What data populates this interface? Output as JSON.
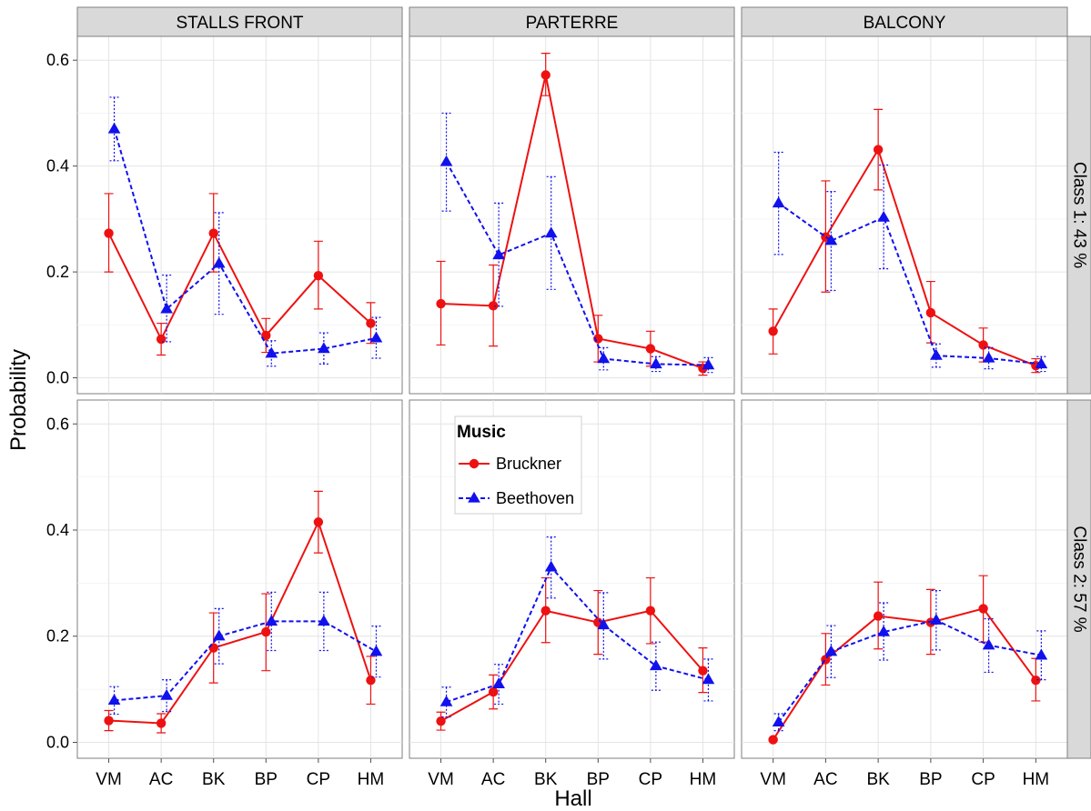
{
  "chart_data": {
    "type": "line",
    "facets": {
      "columns": [
        "STALLS FRONT",
        "PARTERRE",
        "BALCONY"
      ],
      "rows": [
        "Class 1: 43 %",
        "Class 2: 57 %"
      ]
    },
    "categories": [
      "VM",
      "AC",
      "BK",
      "BP",
      "CP",
      "HM"
    ],
    "xlabel": "Hall",
    "ylabel": "Probability",
    "ylim": [
      -0.03,
      0.645
    ],
    "yticks": [
      0.0,
      0.2,
      0.4,
      0.6
    ],
    "ytick_labels": [
      "0.0",
      "0.2",
      "0.4",
      "0.6"
    ],
    "grid": true,
    "legend": {
      "title": "Music",
      "placement": "inside-center",
      "entries": [
        "Bruckner",
        "Beethoven"
      ]
    },
    "series": [
      {
        "name": "Bruckner",
        "color": "#ee1111",
        "marker": "circle",
        "line": "solid",
        "panels": [
          [
            {
              "values": [
                0.273,
                0.073,
                0.273,
                0.08,
                0.193,
                0.103
              ],
              "lower": [
                0.2,
                0.043,
                0.2,
                0.048,
                0.13,
                0.065
              ],
              "upper": [
                0.348,
                0.103,
                0.348,
                0.112,
                0.258,
                0.142
              ]
            },
            {
              "values": [
                0.14,
                0.136,
                0.572,
                0.074,
                0.055,
                0.018
              ],
              "lower": [
                0.062,
                0.06,
                0.533,
                0.03,
                0.022,
                0.005
              ],
              "upper": [
                0.22,
                0.213,
                0.613,
                0.118,
                0.088,
                0.03
              ]
            },
            {
              "values": [
                0.088,
                0.266,
                0.431,
                0.123,
                0.062,
                0.023
              ],
              "lower": [
                0.045,
                0.162,
                0.355,
                0.066,
                0.03,
                0.01
              ],
              "upper": [
                0.13,
                0.372,
                0.507,
                0.182,
                0.094,
                0.036
              ]
            }
          ],
          [
            {
              "values": [
                0.041,
                0.036,
                0.178,
                0.208,
                0.415,
                0.117
              ],
              "lower": [
                0.022,
                0.018,
                0.112,
                0.135,
                0.357,
                0.072
              ],
              "upper": [
                0.06,
                0.054,
                0.244,
                0.28,
                0.473,
                0.162
              ]
            },
            {
              "values": [
                0.04,
                0.095,
                0.248,
                0.226,
                0.248,
                0.135
              ],
              "lower": [
                0.023,
                0.063,
                0.188,
                0.166,
                0.186,
                0.094
              ],
              "upper": [
                0.057,
                0.127,
                0.31,
                0.286,
                0.31,
                0.178
              ]
            },
            {
              "values": [
                0.005,
                0.156,
                0.238,
                0.226,
                0.252,
                0.117
              ],
              "lower": [
                0.003,
                0.108,
                0.176,
                0.166,
                0.189,
                0.078
              ],
              "upper": [
                0.007,
                0.205,
                0.302,
                0.288,
                0.314,
                0.158
              ]
            }
          ]
        ]
      },
      {
        "name": "Beethoven",
        "color": "#1111ee",
        "marker": "triangle",
        "line": "dashed",
        "panels": [
          [
            {
              "values": [
                0.47,
                0.13,
                0.216,
                0.046,
                0.055,
                0.075
              ],
              "lower": [
                0.41,
                0.068,
                0.12,
                0.022,
                0.026,
                0.037
              ],
              "upper": [
                0.53,
                0.194,
                0.312,
                0.07,
                0.085,
                0.114
              ]
            },
            {
              "values": [
                0.408,
                0.232,
                0.273,
                0.036,
                0.026,
                0.024
              ],
              "lower": [
                0.315,
                0.135,
                0.167,
                0.015,
                0.012,
                0.01
              ],
              "upper": [
                0.5,
                0.33,
                0.38,
                0.057,
                0.04,
                0.038
              ]
            },
            {
              "values": [
                0.33,
                0.259,
                0.303,
                0.042,
                0.037,
                0.026
              ],
              "lower": [
                0.233,
                0.165,
                0.206,
                0.02,
                0.017,
                0.012
              ],
              "upper": [
                0.426,
                0.352,
                0.402,
                0.064,
                0.057,
                0.04
              ]
            }
          ],
          [
            {
              "values": [
                0.079,
                0.088,
                0.2,
                0.228,
                0.228,
                0.171
              ],
              "lower": [
                0.053,
                0.058,
                0.148,
                0.173,
                0.173,
                0.123
              ],
              "upper": [
                0.105,
                0.118,
                0.252,
                0.283,
                0.283,
                0.219
              ]
            },
            {
              "values": [
                0.076,
                0.11,
                0.33,
                0.221,
                0.144,
                0.118
              ],
              "lower": [
                0.048,
                0.072,
                0.272,
                0.157,
                0.098,
                0.078
              ],
              "upper": [
                0.104,
                0.147,
                0.387,
                0.282,
                0.189,
                0.157
              ]
            },
            {
              "values": [
                0.038,
                0.171,
                0.208,
                0.23,
                0.183,
                0.164
              ],
              "lower": [
                0.022,
                0.122,
                0.155,
                0.174,
                0.132,
                0.118
              ],
              "upper": [
                0.054,
                0.22,
                0.263,
                0.286,
                0.233,
                0.21
              ]
            }
          ]
        ]
      }
    ]
  }
}
